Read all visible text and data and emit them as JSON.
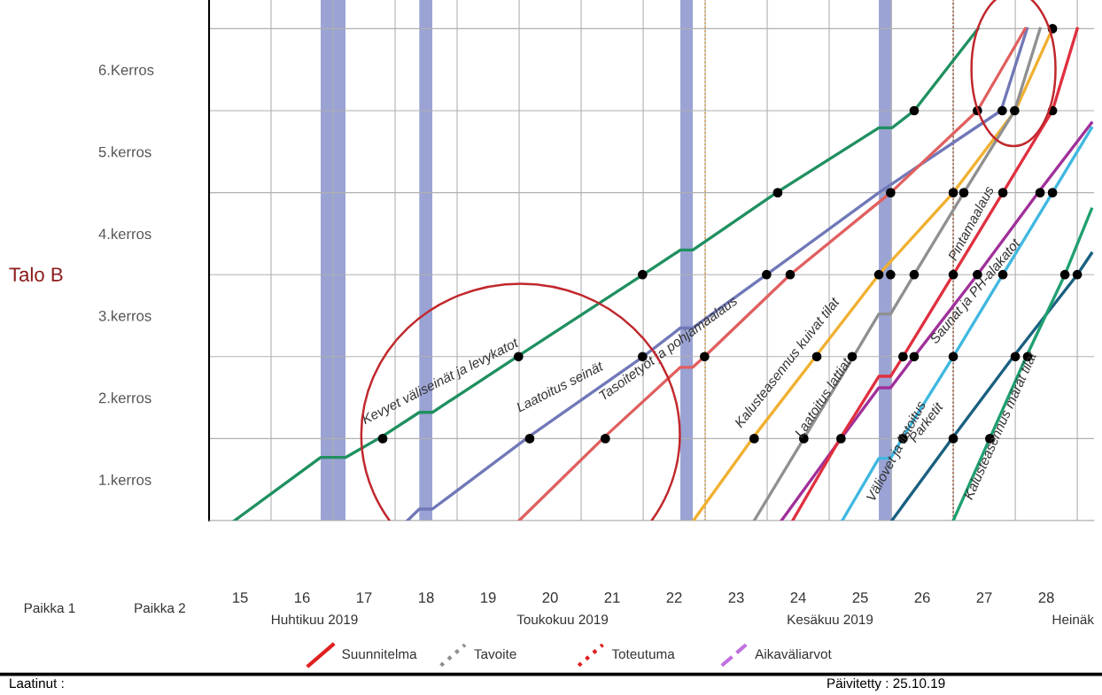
{
  "chart_data": {
    "type": "line",
    "xlim": [
      15,
      29.27
    ],
    "ylim": [
      0,
      6.35
    ],
    "xticks": [
      {
        "value": 15,
        "label": null
      },
      {
        "value": 15.5,
        "label": "15"
      },
      {
        "value": 16,
        "label": null
      },
      {
        "value": 16.5,
        "label": "16"
      },
      {
        "value": 17,
        "label": null
      },
      {
        "value": 17.5,
        "label": "17"
      },
      {
        "value": 18,
        "label": null
      },
      {
        "value": 18.5,
        "label": "18"
      },
      {
        "value": 19,
        "label": null
      },
      {
        "value": 19.5,
        "label": "19"
      },
      {
        "value": 20,
        "label": null
      },
      {
        "value": 20.5,
        "label": "20"
      },
      {
        "value": 21,
        "label": null
      },
      {
        "value": 21.5,
        "label": "21"
      },
      {
        "value": 22,
        "label": null
      },
      {
        "value": 22.5,
        "label": "22"
      },
      {
        "value": 23,
        "label": null
      },
      {
        "value": 23.5,
        "label": "23"
      },
      {
        "value": 24,
        "label": null
      },
      {
        "value": 24.5,
        "label": "24"
      },
      {
        "value": 25,
        "label": null
      },
      {
        "value": 25.5,
        "label": "25"
      },
      {
        "value": 26,
        "label": null
      },
      {
        "value": 26.5,
        "label": "26"
      },
      {
        "value": 27,
        "label": null
      },
      {
        "value": 27.5,
        "label": "27"
      },
      {
        "value": 28,
        "label": null
      },
      {
        "value": 28.5,
        "label": "28"
      },
      {
        "value": 29,
        "label": null
      }
    ],
    "yticks": [
      {
        "value": 0,
        "label": null
      },
      {
        "value": 0.5,
        "label": "1.kerros"
      },
      {
        "value": 1,
        "label": null
      },
      {
        "value": 1.5,
        "label": "2.kerros"
      },
      {
        "value": 2,
        "label": null
      },
      {
        "value": 2.5,
        "label": "3.kerros"
      },
      {
        "value": 3,
        "label": null
      },
      {
        "value": 3.5,
        "label": "4.kerros"
      },
      {
        "value": 4,
        "label": null
      },
      {
        "value": 4.5,
        "label": "5.kerros"
      },
      {
        "value": 5,
        "label": null
      },
      {
        "value": 5.5,
        "label": "6.Kerros"
      },
      {
        "value": 6,
        "label": null
      }
    ],
    "grid": true,
    "legend": false,
    "line_style": "solid",
    "bands": [
      {
        "axis": "x",
        "from": 16.8,
        "to": 17.2,
        "color": "#9aa3d4"
      },
      {
        "axis": "x",
        "from": 18.39,
        "to": 18.6,
        "color": "#9aa3d4"
      },
      {
        "axis": "x",
        "from": 22.6,
        "to": 22.8,
        "color": "#9aa3d4"
      },
      {
        "axis": "x",
        "from": 25.8,
        "to": 26.01,
        "color": "#9aa3d4"
      }
    ],
    "ref_lines": [
      {
        "axis": "x",
        "value": 23.0,
        "color": "#e0a040",
        "line_style": "dotted"
      },
      {
        "axis": "x",
        "value": 27.0,
        "color": "#a05030",
        "line_style": "dotted"
      }
    ],
    "series": [
      {
        "color": "#1f9060",
        "x": [
          15.41,
          16.8,
          17.2,
          17.8,
          18.39,
          18.6,
          19.99,
          22.0,
          22.6,
          22.8,
          24.17,
          25.8,
          26.01,
          26.37,
          27.4
        ],
        "values": [
          0,
          0.77,
          0.77,
          1.03,
          1.32,
          1.32,
          2.01,
          3.0,
          3.3,
          3.3,
          4.01,
          4.79,
          4.79,
          5.0,
          6.0
        ]
      },
      {
        "color": "#7078b8",
        "x": [
          18.2,
          18.39,
          18.6,
          20.17,
          22.0,
          22.6,
          22.8,
          23.99,
          25.8,
          27.77,
          28.19
        ],
        "values": [
          0,
          0.14,
          0.14,
          1.03,
          2.0,
          2.35,
          2.35,
          3.0,
          4.0,
          5.0,
          6.0
        ]
      },
      {
        "color": "#e06060",
        "x": [
          20.0,
          21.39,
          22.6,
          22.8,
          22.99,
          24.37,
          25.99,
          27.39,
          28.16
        ],
        "values": [
          0,
          1.03,
          1.87,
          1.87,
          2.0,
          3.0,
          4.0,
          5.0,
          6.0
        ]
      },
      {
        "color": "#f0b030",
        "x": [
          22.81,
          23.79,
          24.8,
          25.8,
          27.0,
          28.0,
          28.6
        ],
        "values": [
          0,
          1.03,
          2.02,
          3.0,
          4.0,
          5.0,
          6.0
        ]
      },
      {
        "color": "#909090",
        "x": [
          23.79,
          24.59,
          25.39,
          25.8,
          25.99,
          26.37,
          27.17,
          27.99,
          28.4
        ],
        "values": [
          0,
          1.0,
          2.0,
          2.52,
          2.52,
          3.0,
          4.0,
          5.0,
          6.0
        ]
      },
      {
        "color": "#a0309a",
        "x": [
          24.23,
          25.19,
          25.8,
          25.99,
          26.37,
          27.39,
          28.37,
          29.23
        ],
        "values": [
          0,
          1.0,
          1.62,
          1.62,
          2.0,
          3.0,
          4.0,
          4.85
        ]
      },
      {
        "color": "#e03040",
        "x": [
          24.41,
          25.19,
          25.8,
          25.99,
          26.19,
          27.0,
          27.8,
          28.6,
          29.0
        ],
        "values": [
          0,
          1.02,
          1.76,
          1.76,
          2.0,
          3.0,
          4.0,
          5.0,
          6.0
        ]
      },
      {
        "color": "#40b8e0",
        "x": [
          25.21,
          25.8,
          25.99,
          26.19,
          27.0,
          27.8,
          28.6,
          29.23
        ],
        "values": [
          0,
          0.76,
          0.76,
          1.02,
          2.0,
          3.0,
          4.0,
          4.79
        ]
      },
      {
        "color": "#1a6080",
        "x": [
          26.01,
          27.0,
          27.99,
          29.0,
          29.23
        ],
        "values": [
          0,
          1.02,
          2.02,
          3.0,
          3.26
        ]
      },
      {
        "color": "#20a070",
        "x": [
          27.0,
          27.6,
          28.19,
          28.8,
          29.23
        ],
        "values": [
          0,
          1.02,
          2.02,
          3.0,
          3.8
        ]
      },
      {
        "type": "scatter",
        "marker": "circle",
        "color": "#000000",
        "x": [
          17.8,
          20.17,
          21.39,
          23.79,
          24.59,
          25.19,
          26.19,
          27.0,
          27.59,
          19.99,
          21.99,
          22.99,
          24.8,
          25.37,
          26.19,
          26.37,
          27.0,
          28.0,
          28.2,
          21.99,
          23.99,
          24.37,
          25.8,
          25.99,
          26.37,
          27.0,
          27.39,
          27.8,
          28.8,
          29.0,
          24.17,
          25.99,
          27.0,
          27.17,
          27.8,
          28.4,
          28.6,
          26.37,
          27.39,
          27.79,
          27.99,
          28.6,
          28.6
        ],
        "values": [
          1,
          1,
          1,
          1,
          1,
          1,
          1,
          1,
          1,
          2,
          2,
          2,
          2,
          2,
          2,
          2,
          2,
          2,
          2,
          3,
          3,
          3,
          3,
          3,
          3,
          3,
          3,
          3,
          3,
          3,
          4,
          4,
          4,
          4,
          4,
          4,
          4,
          5,
          5,
          5,
          5,
          5,
          6
        ]
      }
    ],
    "annotations": [
      "Kevyet väliseinät ja levykatot",
      "Laatoitus seinät",
      "Tasoitetyöt ja pohjamaalaus",
      "Kalusteasennus kuivat tilat",
      "Laatoitus lattiat",
      "Pintamaalaus",
      "Saunat ja PH-alakatot",
      "Parketit",
      "Väliovet ja listoitus",
      "Kalusteasennus märät tilat",
      "Huhtikuu 2019",
      "Toukokuu 2019",
      "Kesäkuu 2019",
      "Heinäk",
      "Talo B",
      "Paikka 1",
      "Paikka 2",
      "Suunnitelma",
      "Tavoite",
      "Toteutuma",
      "Aikaväliarvot",
      "Laatinut :",
      "Päivitetty : 25.10.19"
    ]
  }
}
